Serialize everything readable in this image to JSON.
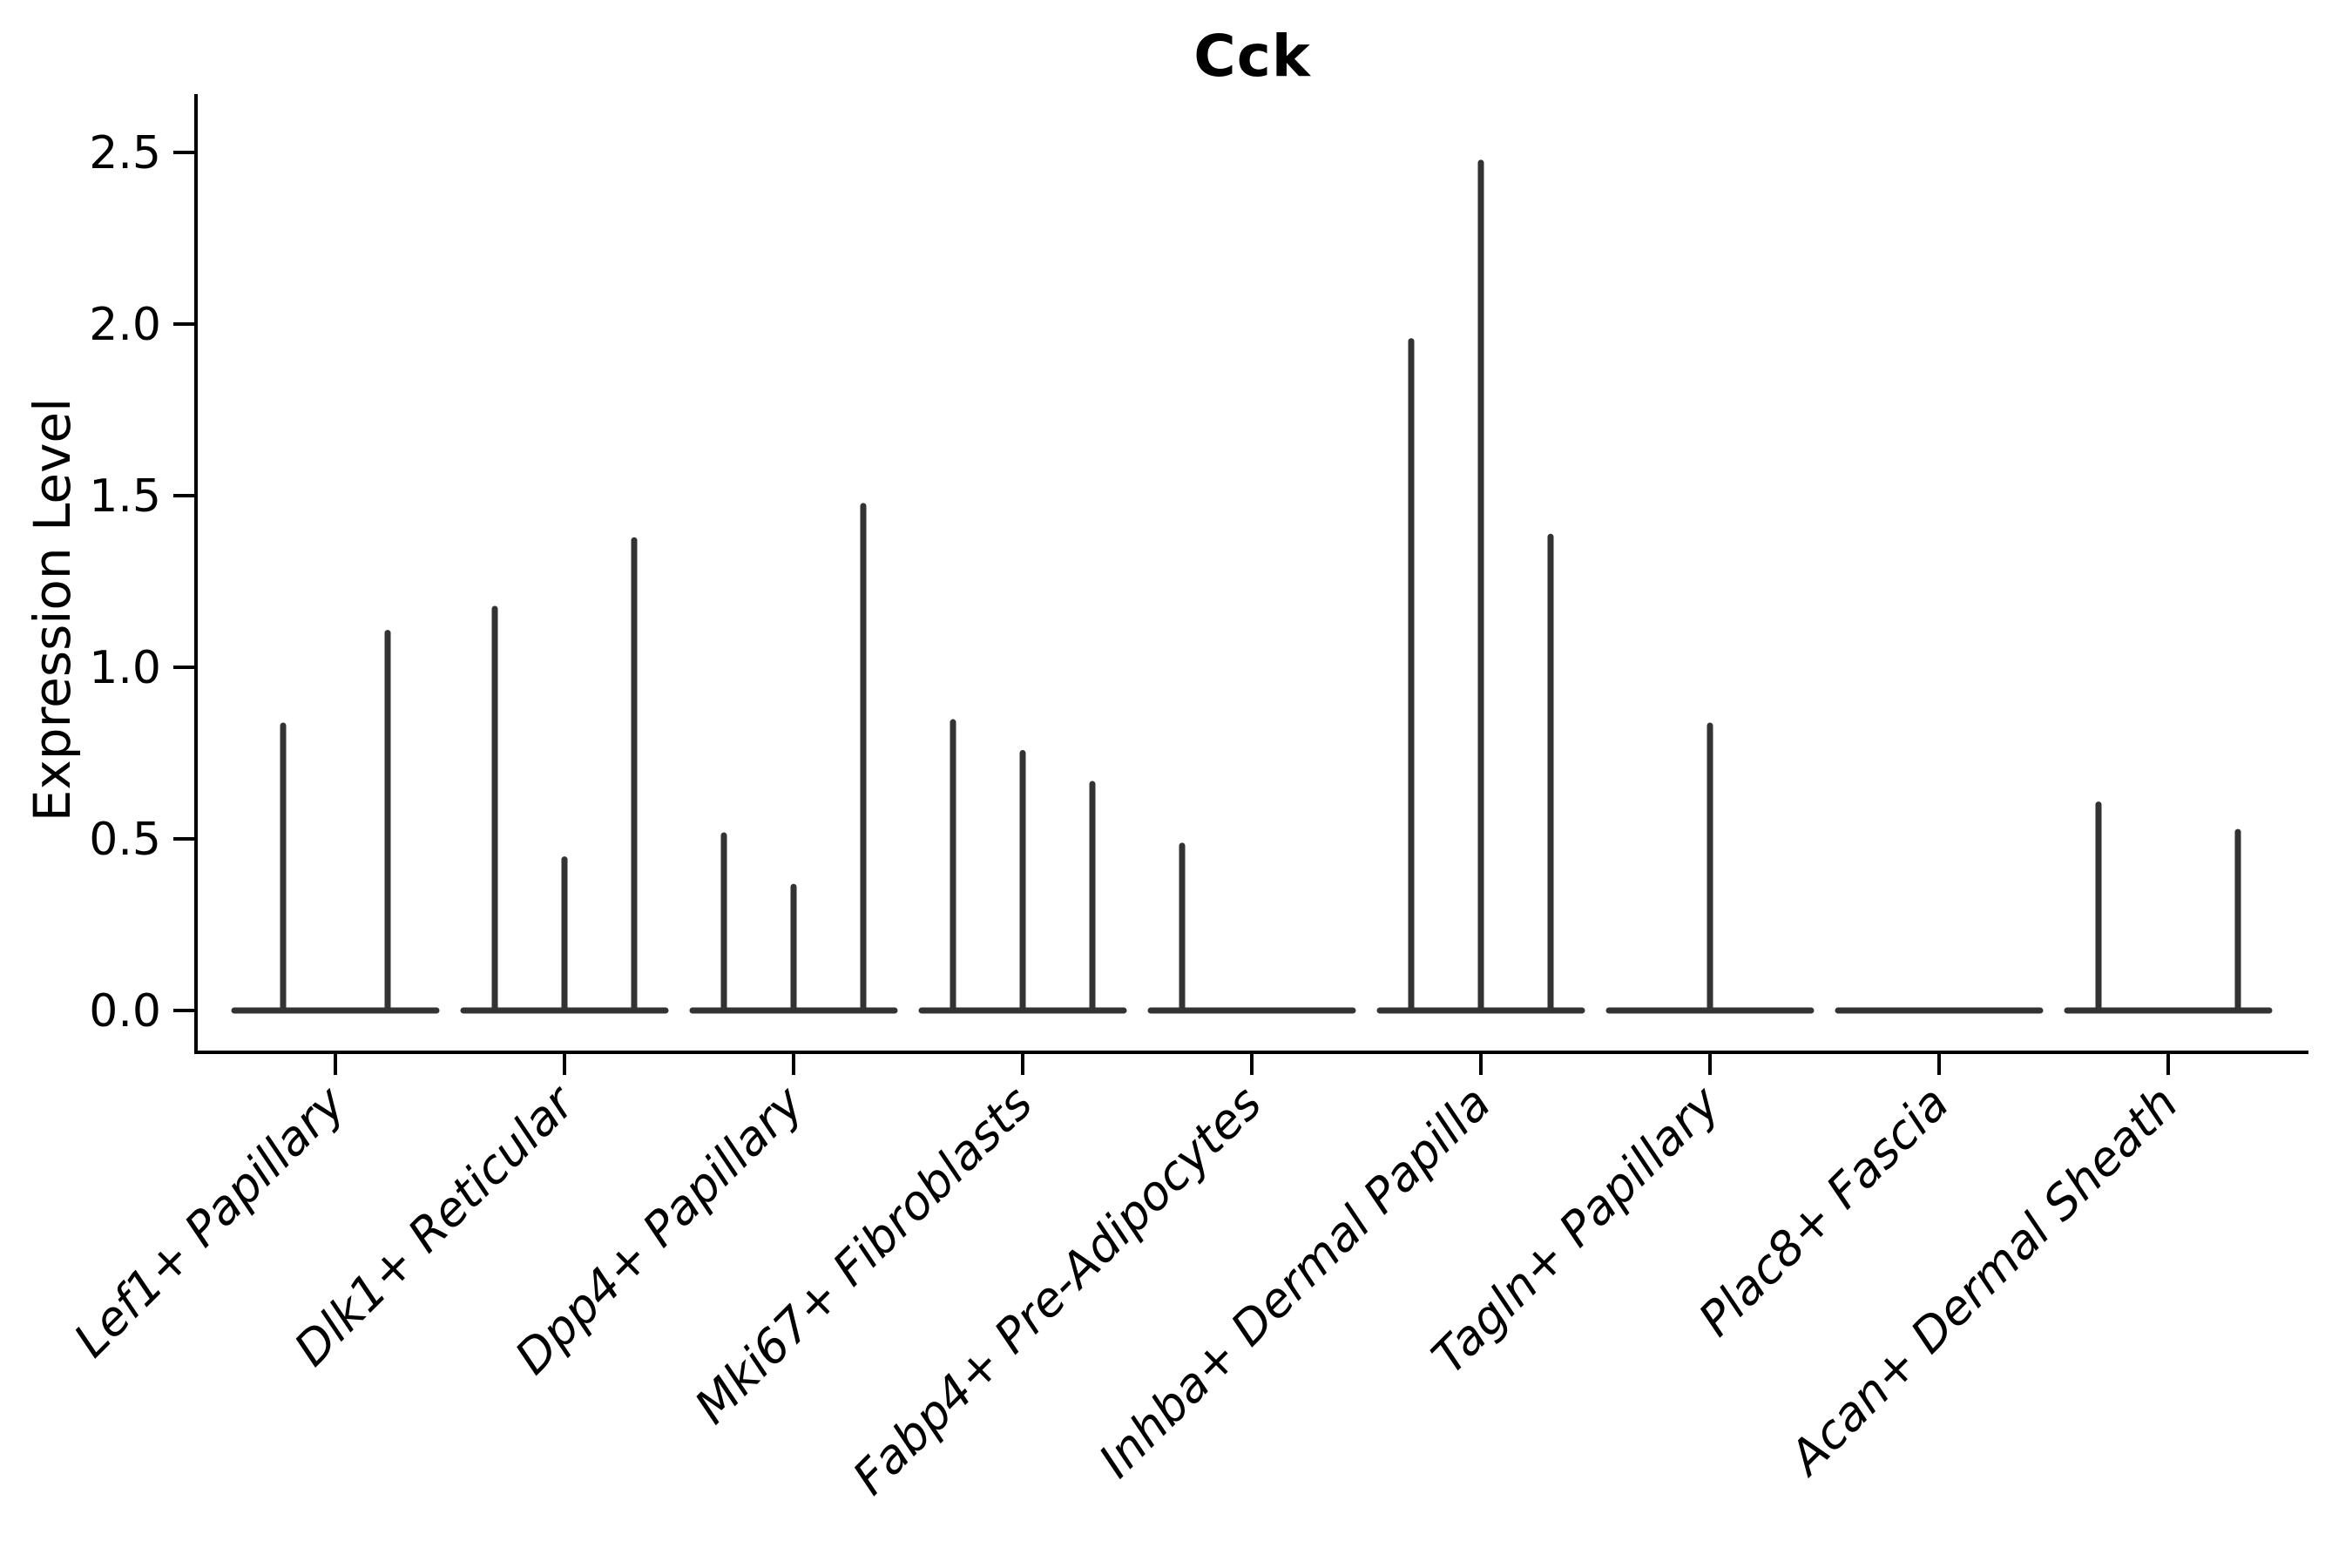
{
  "chart_data": {
    "type": "violin",
    "title": "Cck",
    "xlabel": "",
    "ylabel": "Expression Level",
    "grid": false,
    "legend": null,
    "ylim": [
      -0.12,
      2.66
    ],
    "yticks": [
      0.0,
      0.5,
      1.0,
      1.5,
      2.0,
      2.5
    ],
    "ytick_labels": [
      "0.0",
      "0.5",
      "1.0",
      "1.5",
      "2.0",
      "2.5"
    ],
    "categories": [
      "Lef1+ Papillary",
      "Dlk1+ Reticular",
      "Dpp4+ Papillary",
      "Mki67+ Fibroblasts",
      "Fabp4+ Pre-Adipocytes",
      "Inhba+ Dermal Papilla",
      "Tagln+ Papillary",
      "Plac8+ Fascia",
      "Acan+ Dermal Sheath"
    ],
    "groups": [
      {
        "label": "Lef1+ Papillary",
        "n_violins": 2,
        "spike_values": [
          0.83,
          1.1
        ]
      },
      {
        "label": "Dlk1+ Reticular",
        "n_violins": 3,
        "spike_values": [
          1.17,
          0.44,
          1.37
        ]
      },
      {
        "label": "Dpp4+ Papillary",
        "n_violins": 3,
        "spike_values": [
          0.51,
          0.36,
          1.47
        ]
      },
      {
        "label": "Mki67+ Fibroblasts",
        "n_violins": 3,
        "spike_values": [
          0.84,
          0.75,
          0.66
        ]
      },
      {
        "label": "Fabp4+ Pre-Adipocytes",
        "n_violins": 3,
        "spike_values": [
          0.48,
          null,
          null
        ]
      },
      {
        "label": "Inhba+ Dermal Papilla",
        "n_violins": 3,
        "spike_values": [
          1.95,
          2.47,
          1.38
        ]
      },
      {
        "label": "Tagln+ Papillary",
        "n_violins": 1,
        "spike_values": [
          0.83
        ]
      },
      {
        "label": "Plac8+ Fascia",
        "n_violins": 1,
        "spike_values": [
          null
        ]
      },
      {
        "label": "Acan+ Dermal Sheath",
        "n_violins": 3,
        "spike_values": [
          0.6,
          null,
          0.52
        ]
      }
    ],
    "violin_note": "each flat base sits at expression 0; thin spikes rise to the max expression value of that sub-violin",
    "colors": {
      "violin": "#333333",
      "axis": "#000000",
      "text": "#000000",
      "background": "#ffffff"
    }
  }
}
